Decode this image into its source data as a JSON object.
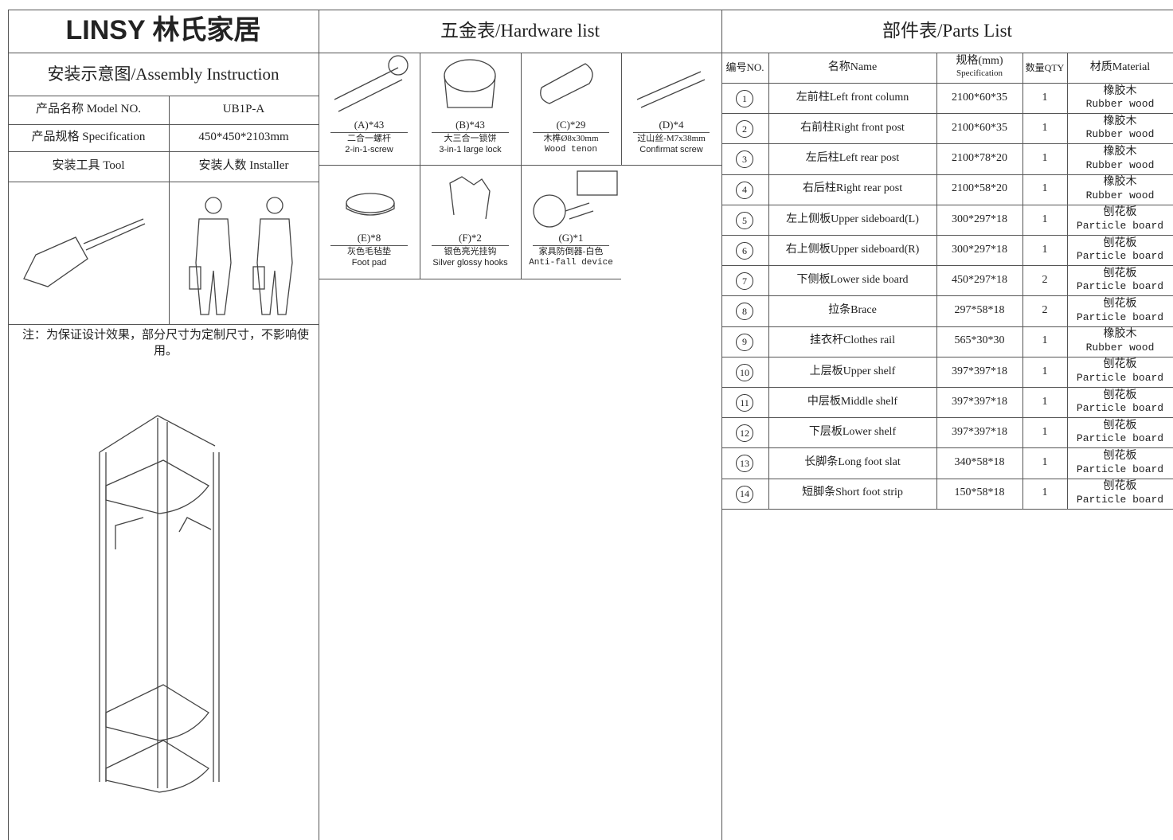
{
  "brand": "LINSY 林氏家居",
  "assembly": {
    "title": "安装示意图/Assembly Instruction",
    "rows": [
      [
        "产品名称 Model NO.",
        "UB1P-A"
      ],
      [
        "产品规格 Specification",
        "450*450*2103mm"
      ],
      [
        "安装工具 Tool",
        "安装人数 Installer"
      ]
    ],
    "note": "注：为保证设计效果，部分尺寸为定制尺寸，不影响使用。"
  },
  "hardware": {
    "title": "五金表/Hardware list",
    "items": [
      {
        "code": "(A)*43",
        "cn": "二合一螺杆",
        "en": "2-in-1-screw"
      },
      {
        "code": "(B)*43",
        "cn": "大三合一锁饼",
        "en": "3-in-1 large lock"
      },
      {
        "code": "(C)*29",
        "cn": "木榫Ø8x30mm",
        "en": "Wood tenon"
      },
      {
        "code": "(D)*4",
        "cn": "过山丝-M7x38mm",
        "en": "Confirmat screw"
      },
      {
        "code": "(E)*8",
        "cn": "灰色毛毡垫",
        "en": "Foot pad"
      },
      {
        "code": "(F)*2",
        "cn": "银色亮光挂钩",
        "en": "Silver glossy hooks"
      },
      {
        "code": "(G)*1",
        "cn": "家具防倒器-白色",
        "en": "Anti-fall device"
      }
    ]
  },
  "parts": {
    "title": "部件表/Parts List",
    "header": {
      "no": "编号NO.",
      "name": "名称Name",
      "spec_cn": "规格(mm)",
      "spec_en": "Specification",
      "qty": "数量QTY",
      "material": "材质Material"
    },
    "rows": [
      {
        "no": 1,
        "name": "左前柱Left front column",
        "spec": "2100*60*35",
        "qty": 1,
        "material_cn": "橡胶木",
        "material_en": "Rubber wood"
      },
      {
        "no": 2,
        "name": "右前柱Right front post",
        "spec": "2100*60*35",
        "qty": 1,
        "material_cn": "橡胶木",
        "material_en": "Rubber wood"
      },
      {
        "no": 3,
        "name": "左后柱Left rear post",
        "spec": "2100*78*20",
        "qty": 1,
        "material_cn": "橡胶木",
        "material_en": "Rubber wood"
      },
      {
        "no": 4,
        "name": "右后柱Right rear post",
        "spec": "2100*58*20",
        "qty": 1,
        "material_cn": "橡胶木",
        "material_en": "Rubber wood"
      },
      {
        "no": 5,
        "name": "左上侧板Upper sideboard(L)",
        "spec": "300*297*18",
        "qty": 1,
        "material_cn": "刨花板",
        "material_en": "Particle board"
      },
      {
        "no": 6,
        "name": "右上侧板Upper sideboard(R)",
        "spec": "300*297*18",
        "qty": 1,
        "material_cn": "刨花板",
        "material_en": "Particle board"
      },
      {
        "no": 7,
        "name": "下侧板Lower side board",
        "spec": "450*297*18",
        "qty": 2,
        "material_cn": "刨花板",
        "material_en": "Particle board"
      },
      {
        "no": 8,
        "name": "拉条Brace",
        "spec": "297*58*18",
        "qty": 2,
        "material_cn": "刨花板",
        "material_en": "Particle board"
      },
      {
        "no": 9,
        "name": "挂衣杆Clothes rail",
        "spec": "565*30*30",
        "qty": 1,
        "material_cn": "橡胶木",
        "material_en": "Rubber wood"
      },
      {
        "no": 10,
        "name": "上层板Upper shelf",
        "spec": "397*397*18",
        "qty": 1,
        "material_cn": "刨花板",
        "material_en": "Particle board"
      },
      {
        "no": 11,
        "name": "中层板Middle shelf",
        "spec": "397*397*18",
        "qty": 1,
        "material_cn": "刨花板",
        "material_en": "Particle board"
      },
      {
        "no": 12,
        "name": "下层板Lower shelf",
        "spec": "397*397*18",
        "qty": 1,
        "material_cn": "刨花板",
        "material_en": "Particle board"
      },
      {
        "no": 13,
        "name": "长脚条Long foot slat",
        "spec": "340*58*18",
        "qty": 1,
        "material_cn": "刨花板",
        "material_en": "Particle board"
      },
      {
        "no": 14,
        "name": "短脚条Short foot strip",
        "spec": "150*58*18",
        "qty": 1,
        "material_cn": "刨花板",
        "material_en": "Particle board"
      }
    ]
  }
}
